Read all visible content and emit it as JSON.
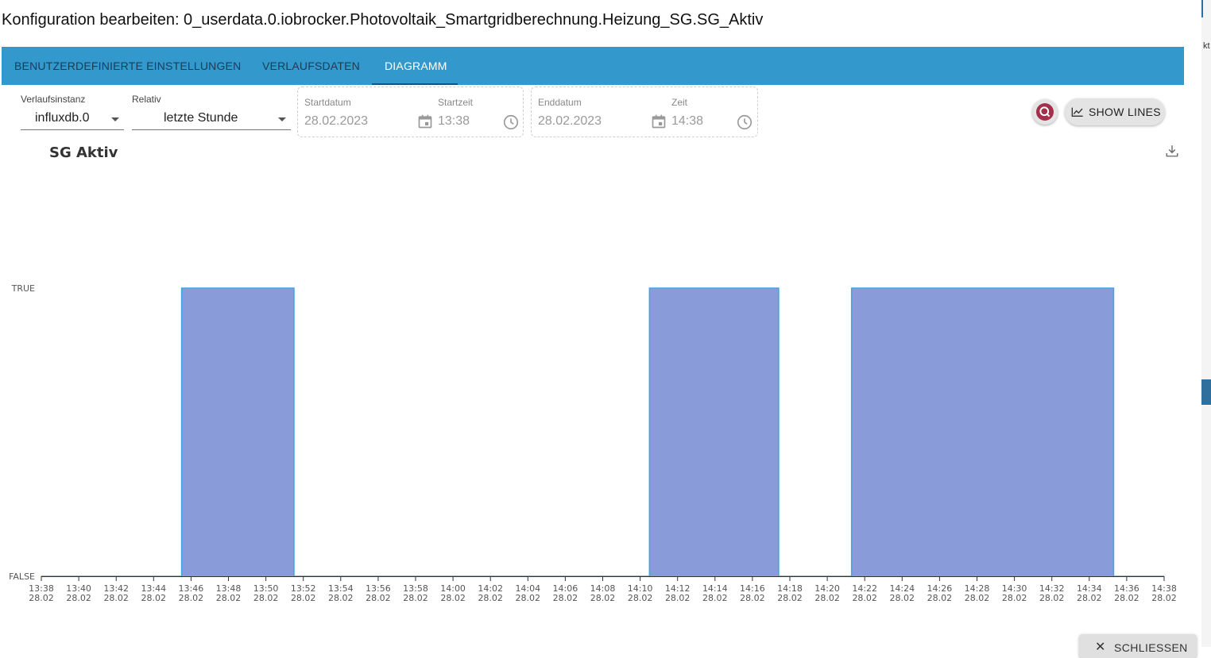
{
  "dialog": {
    "title": "Konfiguration bearbeiten: 0_userdata.0.iobrocker.Photovoltaik_Smartgridberechnung.Heizung_SG.SG_Aktiv"
  },
  "side": {
    "text": "kt"
  },
  "tabs": [
    {
      "label": "BENUTZERDEFINIERTE EINSTELLUNGEN",
      "active": false
    },
    {
      "label": "VERLAUFSDATEN",
      "active": false
    },
    {
      "label": "DIAGRAMM",
      "active": true
    }
  ],
  "controls": {
    "instance": {
      "label": "Verlaufsinstanz",
      "value": "influxdb.0"
    },
    "relative": {
      "label": "Relativ",
      "value": "letzte Stunde"
    },
    "start": {
      "date_label": "Startdatum",
      "date_value": "28.02.2023",
      "time_label": "Startzeit",
      "time_value": "13:38"
    },
    "end": {
      "date_label": "Enddatum",
      "date_value": "28.02.2023",
      "time_label": "Zeit",
      "time_value": "14:38"
    },
    "show_lines_label": "SHOW LINES",
    "close_label": "SCHLIESSEN"
  },
  "colors": {
    "tabbar": "#3399cc",
    "fill": "#8a9bd9",
    "stroke": "#3ea6e6",
    "fab": "#a3304a"
  },
  "icons": {
    "calendar": "calendar-icon",
    "clock": "clock-icon",
    "download": "download-icon",
    "chart": "line-chart-icon",
    "close": "close-icon",
    "search": "search-icon"
  },
  "chart_data": {
    "type": "area",
    "title": "SG Aktiv",
    "y_categories": [
      "FALSE",
      "TRUE"
    ],
    "x_range": [
      "13:38",
      "14:38"
    ],
    "x_ticks": [
      "13:38",
      "13:40",
      "13:42",
      "13:44",
      "13:46",
      "13:48",
      "13:50",
      "13:52",
      "13:54",
      "13:56",
      "13:58",
      "14:00",
      "14:02",
      "14:04",
      "14:06",
      "14:08",
      "14:10",
      "14:12",
      "14:14",
      "14:16",
      "14:18",
      "14:20",
      "14:22",
      "14:24",
      "14:26",
      "14:28",
      "14:30",
      "14:32",
      "14:34",
      "14:36",
      "14:38"
    ],
    "x_tick_date": "28.02",
    "step": true,
    "points": [
      {
        "x": "13:38",
        "y": 0
      },
      {
        "x": "13:45:30",
        "y": 1
      },
      {
        "x": "13:51:30",
        "y": 0
      },
      {
        "x": "14:10:30",
        "y": 1
      },
      {
        "x": "14:17:24",
        "y": 0
      },
      {
        "x": "14:21:18",
        "y": 1
      },
      {
        "x": "14:35:18",
        "y": 0
      },
      {
        "x": "14:38",
        "y": 0
      }
    ],
    "grid": false,
    "legend": "none"
  }
}
